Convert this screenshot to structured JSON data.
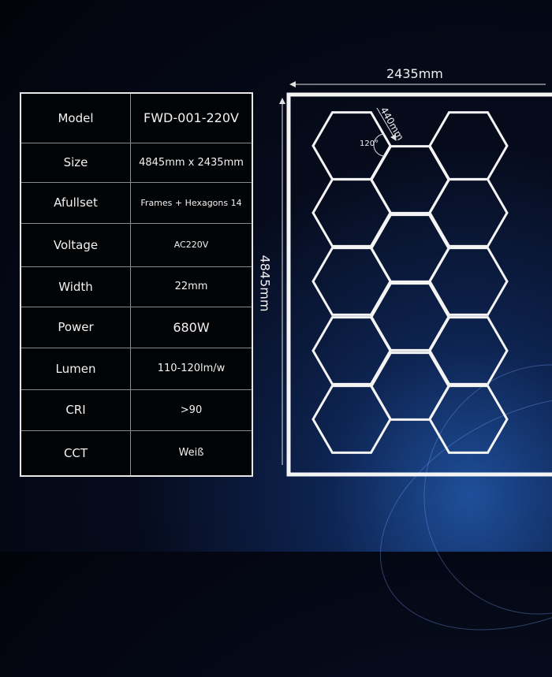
{
  "specs": [
    {
      "label": "Model",
      "value": "FWD-001-220V"
    },
    {
      "label": "Size",
      "value": "4845mm x 2435mm"
    },
    {
      "label": "Afullset",
      "value": "Frames + Hexagons 14"
    },
    {
      "label": "Voltage",
      "value": "AC220V"
    },
    {
      "label": "Width",
      "value": "22mm"
    },
    {
      "label": "Power",
      "value": "680W"
    },
    {
      "label": "Lumen",
      "value": "110-120lm/w"
    },
    {
      "label": "CRI",
      "value": ">90"
    },
    {
      "label": "CCT",
      "value": "Weiß"
    }
  ],
  "diagram": {
    "width_label": "2435mm",
    "height_label": "4845mm",
    "edge_label": "440mm",
    "angle_label": "120°",
    "hexagon_count": 14,
    "line_color": "#f4f4f4"
  }
}
